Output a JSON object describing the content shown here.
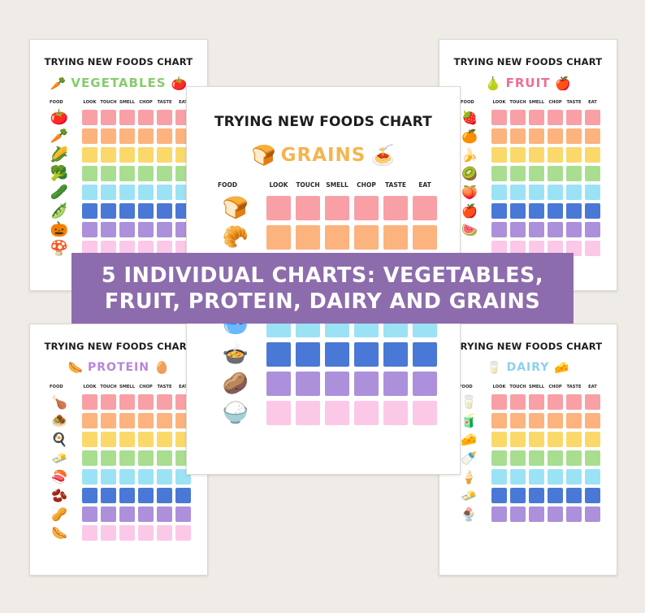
{
  "banner": {
    "line1": "5 INDIVIDUAL CHARTS: VEGETABLES,",
    "line2": "FRUIT, PROTEIN, DAIRY AND GRAINS"
  },
  "columns": [
    "LOOK",
    "TOUCH",
    "SMELL",
    "CHOP",
    "TASTE",
    "EAT"
  ],
  "food_header": "FOOD",
  "row_colors": [
    "#f8a0a6",
    "#fcb37d",
    "#fad96a",
    "#a9de91",
    "#9be2f5",
    "#4a78d6",
    "#ad90db",
    "#fbc8e8"
  ],
  "charts": {
    "vegetables": {
      "title": "TRYING NEW FOODS CHART",
      "category": "VEGETABLES",
      "category_color": "#86cc6b",
      "icons": [
        "carrot-icon",
        "tomato-icon"
      ],
      "icon_glyphs": [
        "🥕",
        "🍅"
      ],
      "foods": [
        "tomato-icon",
        "carrot-icon",
        "corn-icon",
        "broccoli-icon",
        "cucumber-icon",
        "peas-icon",
        "pumpkin-icon",
        "mushroom-icon"
      ],
      "food_glyphs": [
        "🍅",
        "🥕",
        "🌽",
        "🥦",
        "🥒",
        "🫛",
        "🎃",
        "🍄"
      ]
    },
    "fruit": {
      "title": "TRYING NEW FOODS CHART",
      "category": "FRUIT",
      "category_color": "#f26b93",
      "icons": [
        "pear-icon",
        "apple-icon"
      ],
      "icon_glyphs": [
        "🍐",
        "🍎"
      ],
      "foods": [
        "strawberry-icon",
        "orange-icon",
        "banana-icon",
        "kiwi-icon",
        "peach-icon",
        "apple-icon",
        "watermelon-icon"
      ],
      "food_glyphs": [
        "🍓",
        "🍊",
        "🍌",
        "🥝",
        "🍑",
        "🍎",
        "🍉"
      ]
    },
    "grains": {
      "title": "TRYING NEW FOODS CHART",
      "category": "GRAINS",
      "category_color": "#f4b54f",
      "icons": [
        "bread-slice-icon",
        "pasta-icon"
      ],
      "icon_glyphs": [
        "🍞",
        "🍝"
      ],
      "foods": [
        "bread-icon",
        "croissant-icon",
        "flour-icon",
        "oatmeal-icon",
        "potato-icon",
        "rice-icon"
      ],
      "food_glyphs": [
        "🍞",
        "🥐",
        "🥣",
        "🍲",
        "🥔",
        "🍚"
      ]
    },
    "protein": {
      "title": "TRYING NEW FOODS CHART",
      "category": "PROTEIN",
      "category_color": "#b786d8",
      "icons": [
        "sausage-icon",
        "egg-icon"
      ],
      "icon_glyphs": [
        "🌭",
        "🥚"
      ],
      "foods": [
        "chicken-icon",
        "meatballs-icon",
        "egg-icon",
        "tofu-icon",
        "salmon-icon",
        "chickpeas-icon",
        "peanuts-icon",
        "sausage-icon"
      ],
      "food_glyphs": [
        "🍗",
        "🧆",
        "🍳",
        "🧈",
        "🍣",
        "🫘",
        "🥜",
        "🌭"
      ]
    },
    "dairy": {
      "title": "TRYING NEW FOODS CHART",
      "category": "DAIRY",
      "category_color": "#8dd0ef",
      "icons": [
        "milk-glass-icon",
        "cheese-icon"
      ],
      "icon_glyphs": [
        "🥛",
        "🧀"
      ],
      "foods": [
        "milk-glass-icon",
        "milk-carton-icon",
        "cheese-icon",
        "milk-bottle-icon",
        "ice-cream-icon",
        "butter-icon",
        "yogurt-icon"
      ],
      "food_glyphs": [
        "🥛",
        "🧃",
        "🧀",
        "🍼",
        "🍦",
        "🧈",
        "🍨"
      ]
    }
  }
}
